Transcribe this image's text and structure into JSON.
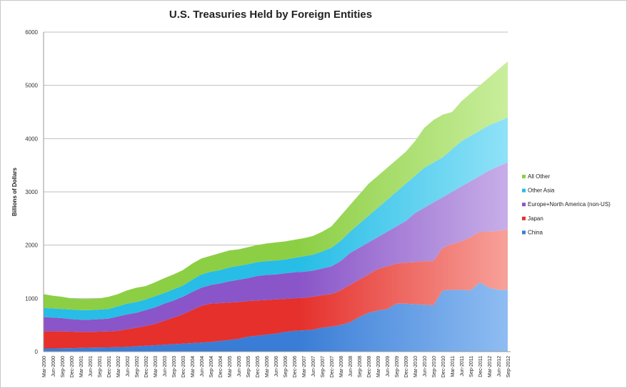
{
  "chart_data": {
    "type": "area",
    "stacked": true,
    "title": "U.S. Treasuries Held by Foreign Entities",
    "xlabel": "",
    "ylabel": "Billions of Dollars",
    "ylim": [
      0,
      6000
    ],
    "yticks": [
      0,
      1000,
      2000,
      3000,
      4000,
      5000,
      6000
    ],
    "grid": true,
    "legend_position": "right",
    "categories": [
      "Mar-2000",
      "Jun-2000",
      "Sep-2000",
      "Dec-2000",
      "Mar-2001",
      "Jun-2001",
      "Sep-2001",
      "Dec-2001",
      "Mar-2002",
      "Jun-2002",
      "Sep-2002",
      "Dec-2002",
      "Mar-2003",
      "Jun-2003",
      "Sep-2003",
      "Dec-2003",
      "Mar-2004",
      "Jun-2004",
      "Sep-2004",
      "Dec-2004",
      "Mar-2005",
      "Jun-2005",
      "Sep-2005",
      "Dec-2005",
      "Mar-2006",
      "Jun-2006",
      "Sep-2006",
      "Dec-2006",
      "Mar-2007",
      "Jun-2007",
      "Sep-2007",
      "Dec-2007",
      "Mar-2008",
      "Jun-2008",
      "Sep-2008",
      "Dec-2008",
      "Mar-2009",
      "Jun-2009",
      "Sep-2009",
      "Dec-2009",
      "Mar-2010",
      "Jun-2010",
      "Sep-2010",
      "Dec-2010",
      "Mar-2011",
      "Jun-2011",
      "Sep-2011",
      "Dec-2011",
      "Mar-2012",
      "Jun-2012",
      "Sep-2012"
    ],
    "series": [
      {
        "name": "China",
        "color": "#3a7dd6",
        "light": "#8fbdf2",
        "values": [
          60,
          60,
          62,
          65,
          70,
          75,
          78,
          80,
          85,
          90,
          100,
          110,
          120,
          130,
          140,
          150,
          160,
          170,
          180,
          200,
          220,
          240,
          280,
          300,
          320,
          340,
          370,
          390,
          400,
          410,
          450,
          470,
          500,
          550,
          650,
          730,
          770,
          800,
          900,
          900,
          890,
          880,
          870,
          1150,
          1160,
          1160,
          1150,
          1300,
          1200,
          1160,
          1160
        ]
      },
      {
        "name": "Japan",
        "color": "#e5302c",
        "light": "#f7a19a",
        "values": [
          320,
          320,
          318,
          310,
          300,
          295,
          297,
          300,
          305,
          330,
          350,
          370,
          400,
          450,
          500,
          550,
          620,
          690,
          720,
          710,
          700,
          690,
          670,
          660,
          650,
          640,
          620,
          610,
          610,
          620,
          610,
          610,
          650,
          700,
          700,
          720,
          780,
          800,
          750,
          770,
          790,
          820,
          830,
          800,
          860,
          910,
          1000,
          950,
          1050,
          1110,
          1140
        ]
      },
      {
        "name": "Europe+North America (non-US)",
        "color": "#8a55c8",
        "light": "#c7aee8",
        "values": [
          270,
          260,
          250,
          235,
          230,
          230,
          235,
          240,
          270,
          280,
          280,
          300,
          310,
          320,
          320,
          330,
          340,
          340,
          350,
          370,
          400,
          420,
          430,
          460,
          470,
          470,
          480,
          490,
          490,
          490,
          500,
          520,
          550,
          600,
          600,
          600,
          600,
          650,
          700,
          780,
          920,
          1000,
          1100,
          950,
          980,
          1030,
          1050,
          1050,
          1150,
          1210,
          1250
        ]
      },
      {
        "name": "Other Asia",
        "color": "#27bde6",
        "light": "#8fe2f7",
        "values": [
          170,
          170,
          170,
          180,
          180,
          180,
          180,
          180,
          190,
          200,
          200,
          200,
          210,
          200,
          210,
          210,
          230,
          250,
          250,
          250,
          260,
          260,
          260,
          260,
          260,
          260,
          260,
          270,
          290,
          300,
          320,
          350,
          380,
          400,
          450,
          500,
          550,
          600,
          650,
          700,
          700,
          750,
          750,
          750,
          800,
          850,
          850,
          850,
          850,
          840,
          850
        ]
      },
      {
        "name": "All Other",
        "color": "#8ccf45",
        "light": "#c9ee9c",
        "values": [
          260,
          240,
          230,
          210,
          210,
          210,
          210,
          230,
          230,
          250,
          270,
          250,
          260,
          280,
          280,
          290,
          300,
          300,
          300,
          320,
          320,
          310,
          320,
          320,
          330,
          340,
          340,
          340,
          340,
          350,
          370,
          400,
          470,
          500,
          550,
          600,
          600,
          600,
          600,
          600,
          650,
          750,
          800,
          800,
          700,
          750,
          800,
          850,
          900,
          980,
          1050
        ]
      }
    ]
  }
}
